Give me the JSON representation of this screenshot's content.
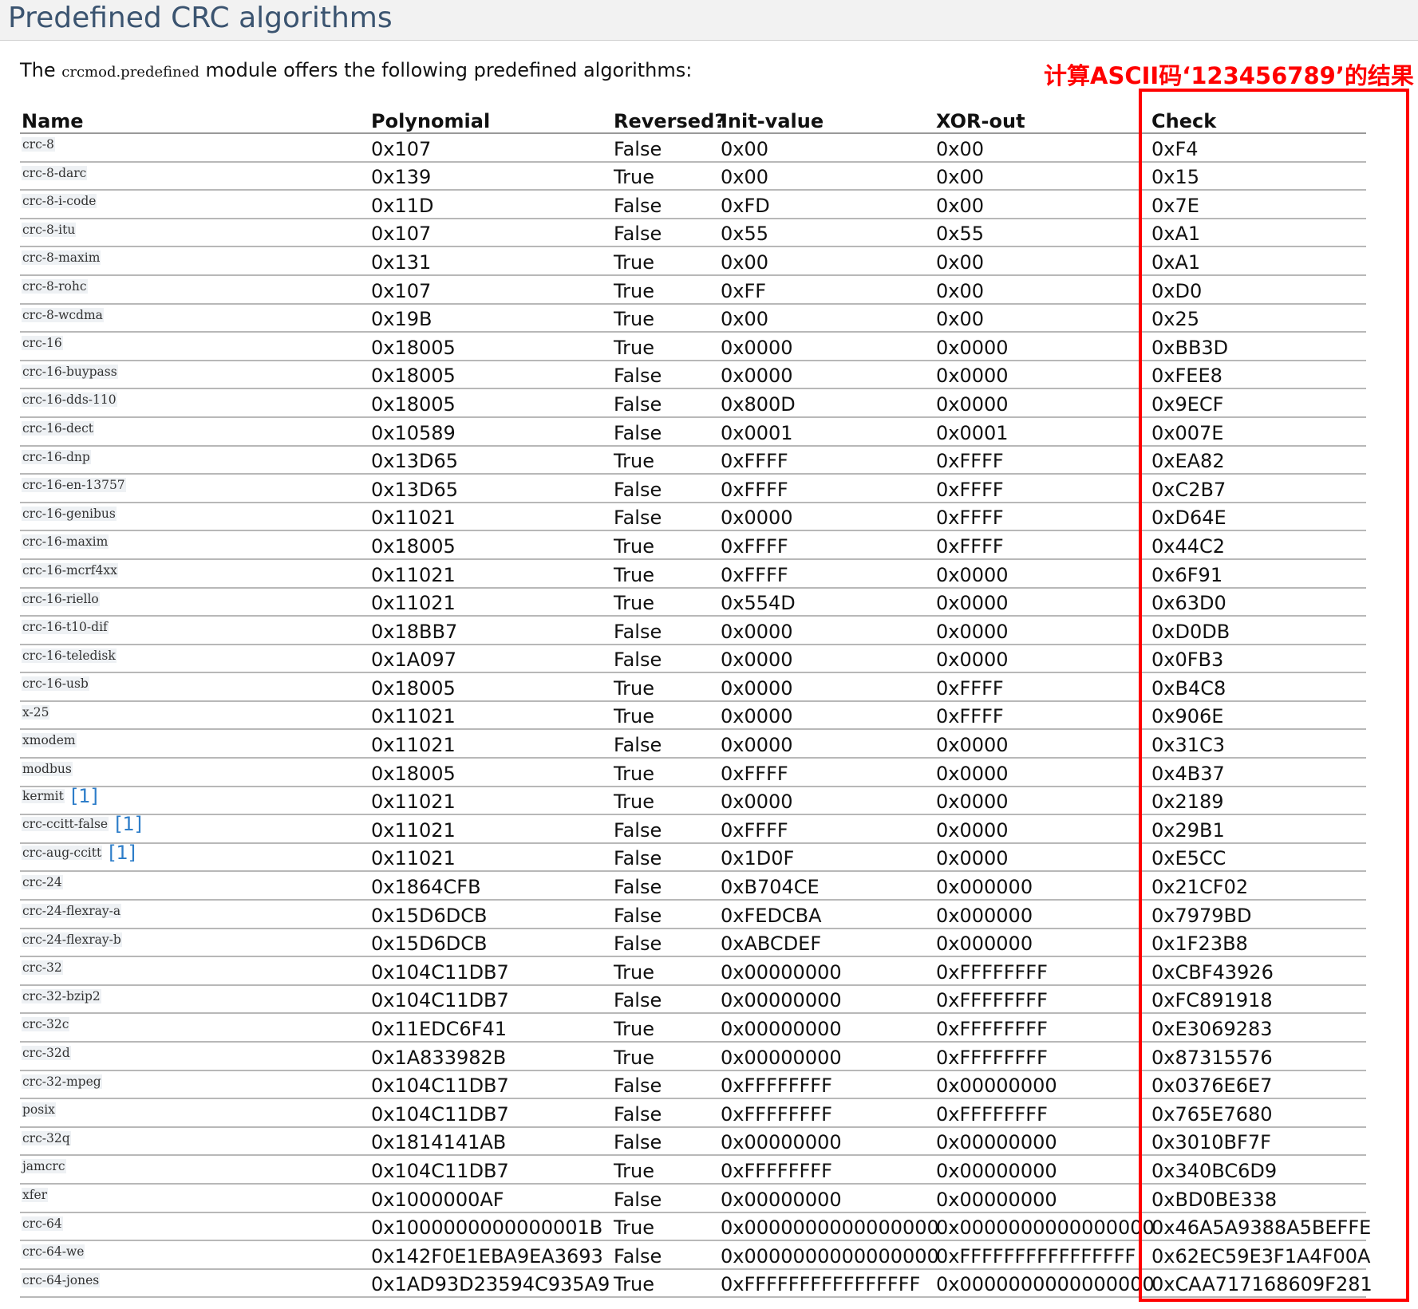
{
  "page": {
    "title": "Predefined CRC algorithms",
    "intro_before": "The ",
    "intro_code": "crcmod.predefined",
    "intro_after": " module offers the following predefined algorithms:",
    "annotation": "计算ASCII码‘123456789’的结果",
    "annotation_color": "#ff0000",
    "link_color": "#2d7dc9"
  },
  "table": {
    "headers": {
      "name": "Name",
      "polynomial": "Polynomial",
      "reversed": "Reversed?",
      "init": "Init-value",
      "xorout": "XOR-out",
      "check": "Check"
    },
    "rows": [
      {
        "name": "crc-8",
        "footnote": "",
        "poly": "0x107",
        "rev": "False",
        "init": "0x00",
        "xor": "0x00",
        "check": "0xF4"
      },
      {
        "name": "crc-8-darc",
        "footnote": "",
        "poly": "0x139",
        "rev": "True",
        "init": "0x00",
        "xor": "0x00",
        "check": "0x15"
      },
      {
        "name": "crc-8-i-code",
        "footnote": "",
        "poly": "0x11D",
        "rev": "False",
        "init": "0xFD",
        "xor": "0x00",
        "check": "0x7E"
      },
      {
        "name": "crc-8-itu",
        "footnote": "",
        "poly": "0x107",
        "rev": "False",
        "init": "0x55",
        "xor": "0x55",
        "check": "0xA1"
      },
      {
        "name": "crc-8-maxim",
        "footnote": "",
        "poly": "0x131",
        "rev": "True",
        "init": "0x00",
        "xor": "0x00",
        "check": "0xA1"
      },
      {
        "name": "crc-8-rohc",
        "footnote": "",
        "poly": "0x107",
        "rev": "True",
        "init": "0xFF",
        "xor": "0x00",
        "check": "0xD0"
      },
      {
        "name": "crc-8-wcdma",
        "footnote": "",
        "poly": "0x19B",
        "rev": "True",
        "init": "0x00",
        "xor": "0x00",
        "check": "0x25"
      },
      {
        "name": "crc-16",
        "footnote": "",
        "poly": "0x18005",
        "rev": "True",
        "init": "0x0000",
        "xor": "0x0000",
        "check": "0xBB3D"
      },
      {
        "name": "crc-16-buypass",
        "footnote": "",
        "poly": "0x18005",
        "rev": "False",
        "init": "0x0000",
        "xor": "0x0000",
        "check": "0xFEE8"
      },
      {
        "name": "crc-16-dds-110",
        "footnote": "",
        "poly": "0x18005",
        "rev": "False",
        "init": "0x800D",
        "xor": "0x0000",
        "check": "0x9ECF"
      },
      {
        "name": "crc-16-dect",
        "footnote": "",
        "poly": "0x10589",
        "rev": "False",
        "init": "0x0001",
        "xor": "0x0001",
        "check": "0x007E"
      },
      {
        "name": "crc-16-dnp",
        "footnote": "",
        "poly": "0x13D65",
        "rev": "True",
        "init": "0xFFFF",
        "xor": "0xFFFF",
        "check": "0xEA82"
      },
      {
        "name": "crc-16-en-13757",
        "footnote": "",
        "poly": "0x13D65",
        "rev": "False",
        "init": "0xFFFF",
        "xor": "0xFFFF",
        "check": "0xC2B7"
      },
      {
        "name": "crc-16-genibus",
        "footnote": "",
        "poly": "0x11021",
        "rev": "False",
        "init": "0x0000",
        "xor": "0xFFFF",
        "check": "0xD64E"
      },
      {
        "name": "crc-16-maxim",
        "footnote": "",
        "poly": "0x18005",
        "rev": "True",
        "init": "0xFFFF",
        "xor": "0xFFFF",
        "check": "0x44C2"
      },
      {
        "name": "crc-16-mcrf4xx",
        "footnote": "",
        "poly": "0x11021",
        "rev": "True",
        "init": "0xFFFF",
        "xor": "0x0000",
        "check": "0x6F91"
      },
      {
        "name": "crc-16-riello",
        "footnote": "",
        "poly": "0x11021",
        "rev": "True",
        "init": "0x554D",
        "xor": "0x0000",
        "check": "0x63D0"
      },
      {
        "name": "crc-16-t10-dif",
        "footnote": "",
        "poly": "0x18BB7",
        "rev": "False",
        "init": "0x0000",
        "xor": "0x0000",
        "check": "0xD0DB"
      },
      {
        "name": "crc-16-teledisk",
        "footnote": "",
        "poly": "0x1A097",
        "rev": "False",
        "init": "0x0000",
        "xor": "0x0000",
        "check": "0x0FB3"
      },
      {
        "name": "crc-16-usb",
        "footnote": "",
        "poly": "0x18005",
        "rev": "True",
        "init": "0x0000",
        "xor": "0xFFFF",
        "check": "0xB4C8"
      },
      {
        "name": "x-25",
        "footnote": "",
        "poly": "0x11021",
        "rev": "True",
        "init": "0x0000",
        "xor": "0xFFFF",
        "check": "0x906E"
      },
      {
        "name": "xmodem",
        "footnote": "",
        "poly": "0x11021",
        "rev": "False",
        "init": "0x0000",
        "xor": "0x0000",
        "check": "0x31C3"
      },
      {
        "name": "modbus",
        "footnote": "",
        "poly": "0x18005",
        "rev": "True",
        "init": "0xFFFF",
        "xor": "0x0000",
        "check": "0x4B37"
      },
      {
        "name": "kermit",
        "footnote": "[1]",
        "poly": "0x11021",
        "rev": "True",
        "init": "0x0000",
        "xor": "0x0000",
        "check": "0x2189"
      },
      {
        "name": "crc-ccitt-false",
        "footnote": "[1]",
        "poly": "0x11021",
        "rev": "False",
        "init": "0xFFFF",
        "xor": "0x0000",
        "check": "0x29B1"
      },
      {
        "name": "crc-aug-ccitt",
        "footnote": "[1]",
        "poly": "0x11021",
        "rev": "False",
        "init": "0x1D0F",
        "xor": "0x0000",
        "check": "0xE5CC"
      },
      {
        "name": "crc-24",
        "footnote": "",
        "poly": "0x1864CFB",
        "rev": "False",
        "init": "0xB704CE",
        "xor": "0x000000",
        "check": "0x21CF02"
      },
      {
        "name": "crc-24-flexray-a",
        "footnote": "",
        "poly": "0x15D6DCB",
        "rev": "False",
        "init": "0xFEDCBA",
        "xor": "0x000000",
        "check": "0x7979BD"
      },
      {
        "name": "crc-24-flexray-b",
        "footnote": "",
        "poly": "0x15D6DCB",
        "rev": "False",
        "init": "0xABCDEF",
        "xor": "0x000000",
        "check": "0x1F23B8"
      },
      {
        "name": "crc-32",
        "footnote": "",
        "poly": "0x104C11DB7",
        "rev": "True",
        "init": "0x00000000",
        "xor": "0xFFFFFFFF",
        "check": "0xCBF43926"
      },
      {
        "name": "crc-32-bzip2",
        "footnote": "",
        "poly": "0x104C11DB7",
        "rev": "False",
        "init": "0x00000000",
        "xor": "0xFFFFFFFF",
        "check": "0xFC891918"
      },
      {
        "name": "crc-32c",
        "footnote": "",
        "poly": "0x11EDC6F41",
        "rev": "True",
        "init": "0x00000000",
        "xor": "0xFFFFFFFF",
        "check": "0xE3069283"
      },
      {
        "name": "crc-32d",
        "footnote": "",
        "poly": "0x1A833982B",
        "rev": "True",
        "init": "0x00000000",
        "xor": "0xFFFFFFFF",
        "check": "0x87315576"
      },
      {
        "name": "crc-32-mpeg",
        "footnote": "",
        "poly": "0x104C11DB7",
        "rev": "False",
        "init": "0xFFFFFFFF",
        "xor": "0x00000000",
        "check": "0x0376E6E7"
      },
      {
        "name": "posix",
        "footnote": "",
        "poly": "0x104C11DB7",
        "rev": "False",
        "init": "0xFFFFFFFF",
        "xor": "0xFFFFFFFF",
        "check": "0x765E7680"
      },
      {
        "name": "crc-32q",
        "footnote": "",
        "poly": "0x1814141AB",
        "rev": "False",
        "init": "0x00000000",
        "xor": "0x00000000",
        "check": "0x3010BF7F"
      },
      {
        "name": "jamcrc",
        "footnote": "",
        "poly": "0x104C11DB7",
        "rev": "True",
        "init": "0xFFFFFFFF",
        "xor": "0x00000000",
        "check": "0x340BC6D9"
      },
      {
        "name": "xfer",
        "footnote": "",
        "poly": "0x1000000AF",
        "rev": "False",
        "init": "0x00000000",
        "xor": "0x00000000",
        "check": "0xBD0BE338"
      },
      {
        "name": "crc-64",
        "footnote": "",
        "poly": "0x1000000000000001B",
        "rev": "True",
        "init": "0x0000000000000000",
        "xor": "0x0000000000000000",
        "check": "0x46A5A9388A5BEFFE"
      },
      {
        "name": "crc-64-we",
        "footnote": "",
        "poly": "0x142F0E1EBA9EA3693",
        "rev": "False",
        "init": "0x0000000000000000",
        "xor": "0xFFFFFFFFFFFFFFFF",
        "check": "0x62EC59E3F1A4F00A"
      },
      {
        "name": "crc-64-jones",
        "footnote": "",
        "poly": "0x1AD93D23594C935A9",
        "rev": "True",
        "init": "0xFFFFFFFFFFFFFFFF",
        "xor": "0x0000000000000000",
        "check": "0xCAA717168609F281"
      }
    ]
  }
}
